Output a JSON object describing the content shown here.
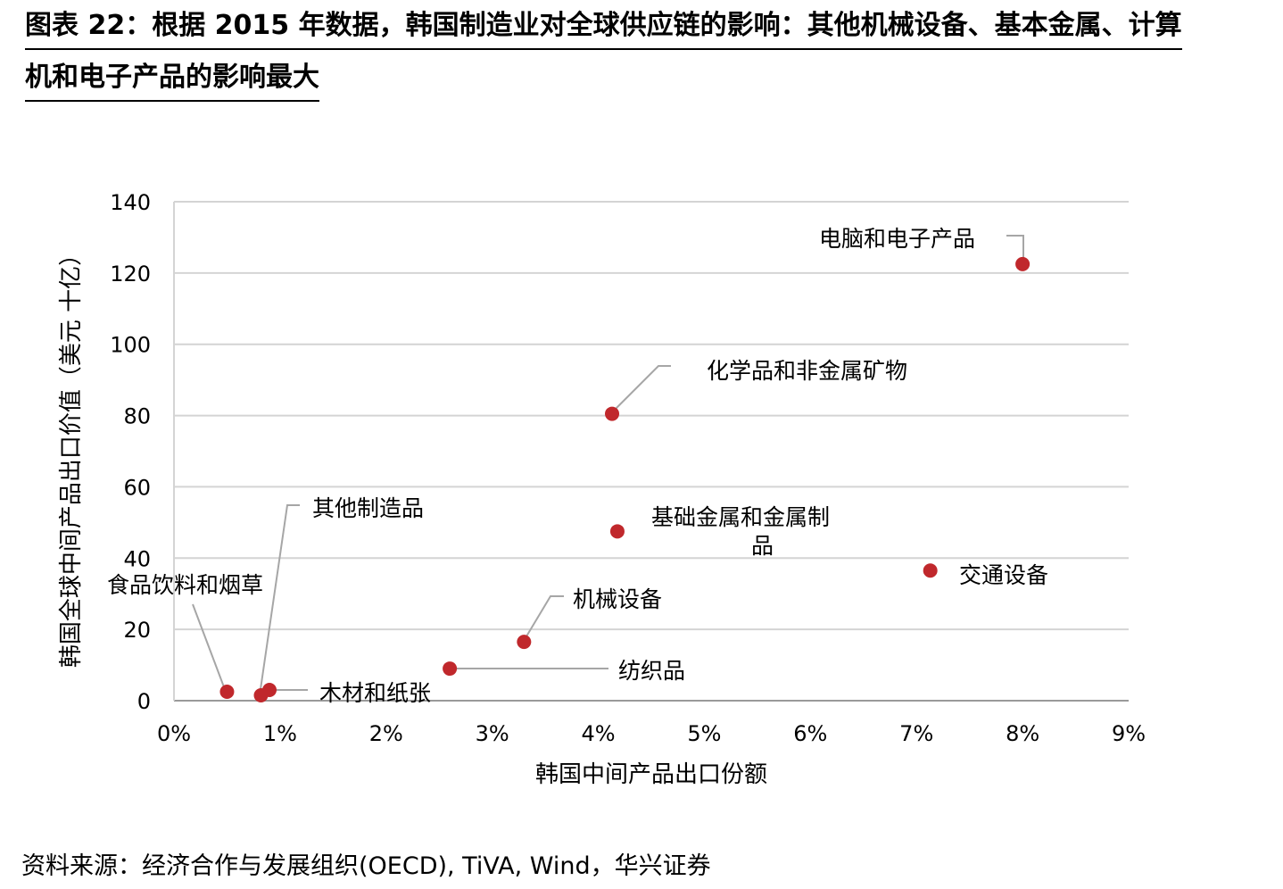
{
  "title": {
    "line1": "图表 22：根据 2015 年数据，韩国制造业对全球供应链的影响：其他机械设备、基本金属、计算",
    "line2": "机和电子产品的影响最大"
  },
  "source": "资料来源：经济合作与发展组织(OECD), TiVA, Wind，华兴证券",
  "chart_data": {
    "type": "scatter",
    "xlabel": "韩国中间产品出口份额",
    "ylabel": "韩国全球中间产品出口价值（美元 十亿）",
    "xlim": [
      0,
      9
    ],
    "ylim": [
      0,
      140
    ],
    "x_ticks": [
      "0%",
      "1%",
      "2%",
      "3%",
      "4%",
      "5%",
      "6%",
      "7%",
      "8%",
      "9%"
    ],
    "y_ticks": [
      "0",
      "20",
      "40",
      "60",
      "80",
      "100",
      "120",
      "140"
    ],
    "grid": "horizontal",
    "point_color": "#c0282c",
    "points": [
      {
        "label": "电脑和电子产品",
        "x": 8.0,
        "y": 122.5
      },
      {
        "label": "化学品和非金属矿物",
        "x": 4.13,
        "y": 80.5
      },
      {
        "label": "基础金属和金属制品",
        "label_lines": [
          "基础金属和金属制",
          "品"
        ],
        "x": 4.18,
        "y": 47.5
      },
      {
        "label": "交通设备",
        "x": 7.13,
        "y": 36.5
      },
      {
        "label": "机械设备",
        "x": 3.3,
        "y": 16.5
      },
      {
        "label": "纺织品",
        "x": 2.6,
        "y": 9.0
      },
      {
        "label": "其他制造品",
        "x": 0.82,
        "y": 1.5
      },
      {
        "label": "食品饮料和烟草",
        "x": 0.5,
        "y": 2.5
      },
      {
        "label": "木材和纸张",
        "x": 0.9,
        "y": 3.0
      }
    ]
  }
}
